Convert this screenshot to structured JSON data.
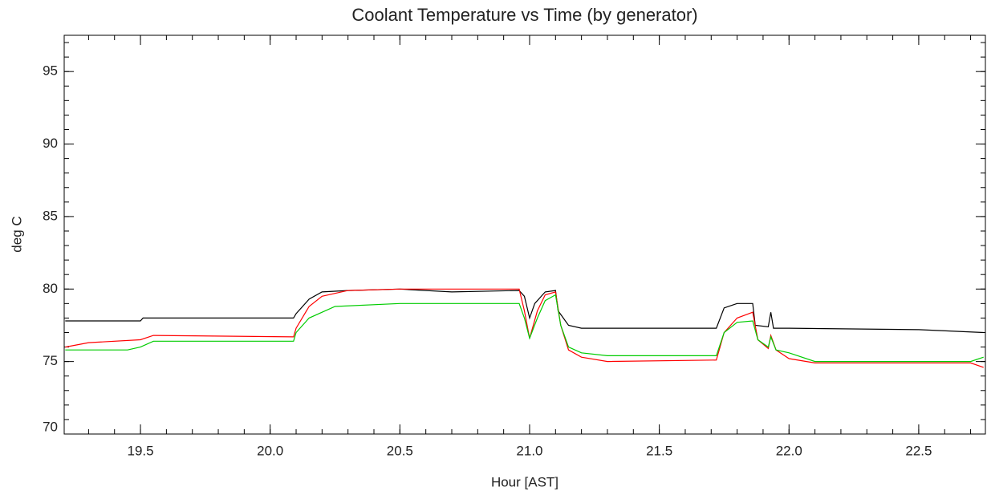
{
  "chart_data": {
    "type": "line",
    "title": "Coolant Temperature vs Time (by generator)",
    "x_label": "Hour [AST]",
    "y_label": "deg C",
    "xlim": [
      19.206,
      22.757
    ],
    "ylim": [
      70,
      97.5
    ],
    "xticks": [
      19.5,
      {
        "value": 20,
        "label": "20.0"
      },
      20.5,
      {
        "value": 21,
        "label": "21.0"
      },
      21.5,
      {
        "value": 22,
        "label": "22.0"
      },
      22.5
    ],
    "yticks": [
      70,
      75,
      80,
      85,
      90,
      95
    ],
    "series": [
      {
        "color": "#000000",
        "x": [
          19.21,
          19.5,
          19.51,
          20.09,
          20.1,
          20.15,
          20.2,
          20.3,
          20.5,
          20.7,
          20.96,
          20.98,
          21.0,
          21.02,
          21.06,
          21.1,
          21.11,
          21.15,
          21.2,
          21.5,
          21.72,
          21.75,
          21.8,
          21.86,
          21.87,
          21.92,
          21.93,
          21.94,
          22.0,
          22.5,
          22.75
        ],
        "values": [
          77.8,
          77.8,
          78.0,
          78.0,
          78.3,
          79.3,
          79.8,
          79.9,
          80.0,
          79.8,
          79.9,
          79.5,
          78.0,
          79.0,
          79.8,
          79.9,
          78.5,
          77.5,
          77.3,
          77.3,
          77.3,
          78.7,
          79.0,
          79.0,
          77.5,
          77.4,
          78.4,
          77.3,
          77.3,
          77.2,
          77.0
        ]
      },
      {
        "color": "#ff0000",
        "x": [
          19.21,
          19.3,
          19.5,
          19.55,
          20.09,
          20.1,
          20.15,
          20.2,
          20.3,
          20.5,
          20.96,
          20.98,
          21.0,
          21.03,
          21.06,
          21.1,
          21.12,
          21.15,
          21.2,
          21.3,
          21.72,
          21.75,
          21.8,
          21.86,
          21.88,
          21.92,
          21.93,
          21.95,
          22.0,
          22.1,
          22.5,
          22.7,
          22.75
        ],
        "values": [
          76.0,
          76.3,
          76.5,
          76.8,
          76.7,
          77.3,
          78.8,
          79.5,
          79.9,
          80.0,
          80.0,
          78.5,
          76.6,
          78.5,
          79.6,
          79.8,
          77.5,
          75.8,
          75.3,
          75.0,
          75.1,
          77.0,
          78.0,
          78.4,
          76.5,
          75.9,
          76.8,
          75.8,
          75.2,
          74.9,
          74.9,
          74.9,
          74.6
        ]
      },
      {
        "color": "#00cc00",
        "x": [
          19.21,
          19.45,
          19.5,
          19.55,
          20.09,
          20.1,
          20.15,
          20.25,
          20.5,
          20.96,
          20.98,
          21.0,
          21.03,
          21.06,
          21.1,
          21.12,
          21.15,
          21.2,
          21.3,
          21.72,
          21.75,
          21.8,
          21.86,
          21.88,
          21.92,
          21.93,
          21.95,
          22.0,
          22.1,
          22.5,
          22.7,
          22.75
        ],
        "values": [
          75.8,
          75.8,
          76.0,
          76.4,
          76.4,
          77.0,
          78.0,
          78.8,
          79.0,
          79.0,
          78.0,
          76.6,
          78.0,
          79.2,
          79.6,
          77.5,
          76.0,
          75.6,
          75.4,
          75.4,
          77.0,
          77.7,
          77.8,
          76.5,
          76.0,
          76.7,
          75.8,
          75.6,
          75.0,
          75.0,
          75.0,
          75.3
        ]
      }
    ]
  }
}
